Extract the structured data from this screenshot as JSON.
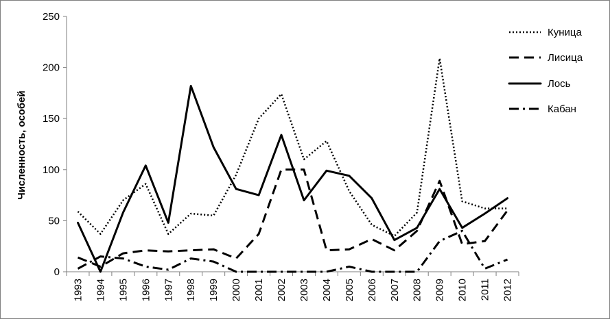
{
  "chart_data": {
    "type": "line",
    "title": "",
    "xlabel": "",
    "ylabel": "Численность, особей",
    "ylim": [
      0,
      250
    ],
    "yticks": [
      0,
      50,
      100,
      150,
      200,
      250
    ],
    "grid": false,
    "legend_position": "right",
    "categories": [
      "1993",
      "1994",
      "1995",
      "1996",
      "1997",
      "1998",
      "1999",
      "2000",
      "2001",
      "2002",
      "2003",
      "2004",
      "2005",
      "2006",
      "2007",
      "2008",
      "2009",
      "2010",
      "2011",
      "2012"
    ],
    "series": [
      {
        "name": "Куница",
        "style": "dotted",
        "values": [
          59,
          37,
          70,
          86,
          37,
          57,
          55,
          95,
          150,
          174,
          110,
          128,
          79,
          46,
          35,
          58,
          209,
          69,
          62,
          62
        ]
      },
      {
        "name": "Лисица",
        "style": "dashed",
        "values": [
          14,
          5,
          18,
          21,
          20,
          21,
          22,
          13,
          37,
          100,
          100,
          21,
          22,
          32,
          21,
          40,
          89,
          27,
          30,
          60
        ]
      },
      {
        "name": "Лось",
        "style": "solid",
        "values": [
          48,
          0,
          58,
          104,
          48,
          182,
          122,
          81,
          75,
          134,
          70,
          99,
          94,
          72,
          31,
          43,
          81,
          43,
          57,
          72
        ]
      },
      {
        "name": "Кабан",
        "style": "dashdot",
        "values": [
          3,
          15,
          13,
          5,
          2,
          13,
          10,
          0,
          0,
          0,
          0,
          0,
          5,
          0,
          0,
          0,
          30,
          40,
          3,
          12
        ]
      }
    ]
  }
}
